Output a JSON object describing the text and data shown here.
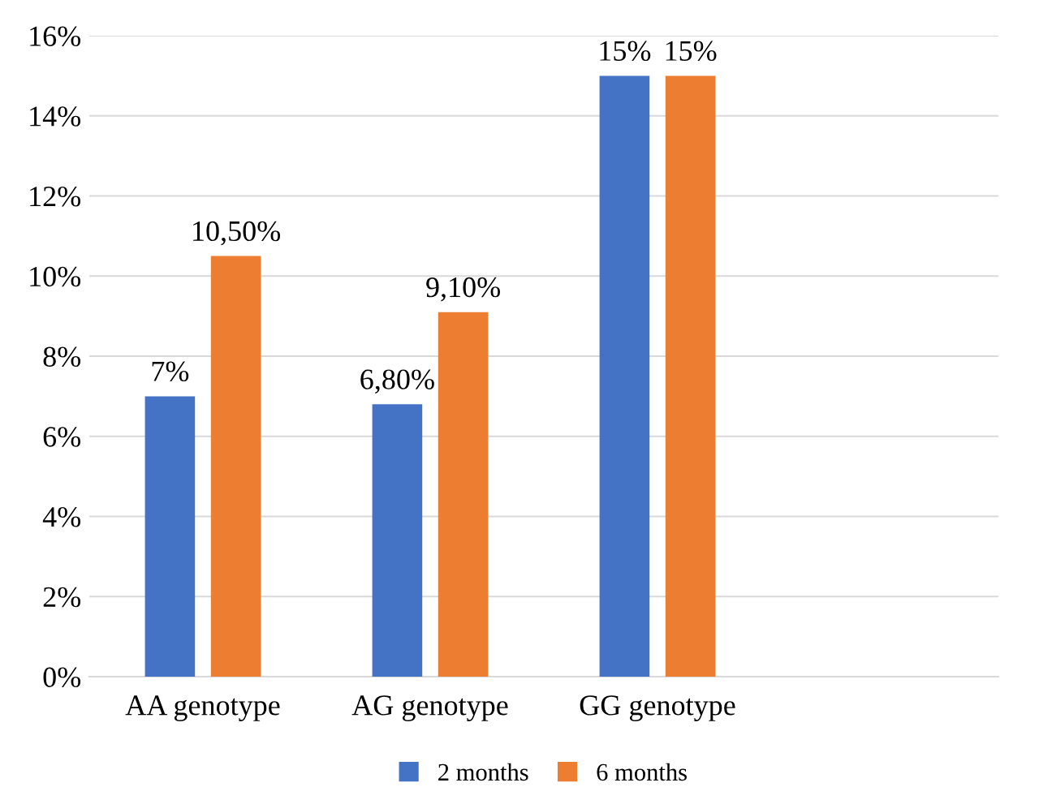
{
  "chart_data": {
    "type": "bar",
    "categories": [
      "AA genotype",
      "AG genotype",
      "GG genotype",
      null
    ],
    "series": [
      {
        "name": "2 months",
        "color": "#4472c4",
        "values": [
          7,
          6.8,
          15,
          null
        ],
        "value_labels": [
          "7%",
          "6,80%",
          "15%",
          null
        ]
      },
      {
        "name": "6 months",
        "color": "#ed7d31",
        "values": [
          10.5,
          9.1,
          15,
          null
        ],
        "value_labels": [
          "10,50%",
          "9,10%",
          "15%",
          null
        ]
      }
    ],
    "ylim": [
      0,
      16
    ],
    "yticks": [
      {
        "value": 0,
        "label": "0%"
      },
      {
        "value": 2,
        "label": "2%"
      },
      {
        "value": 4,
        "label": "4%"
      },
      {
        "value": 6,
        "label": "6%"
      },
      {
        "value": 8,
        "label": "8%"
      },
      {
        "value": 10,
        "label": "10%"
      },
      {
        "value": 12,
        "label": "12%"
      },
      {
        "value": 14,
        "label": "14%"
      },
      {
        "value": 16,
        "label": "16%"
      }
    ],
    "grid": "y",
    "legend": "bottom"
  }
}
